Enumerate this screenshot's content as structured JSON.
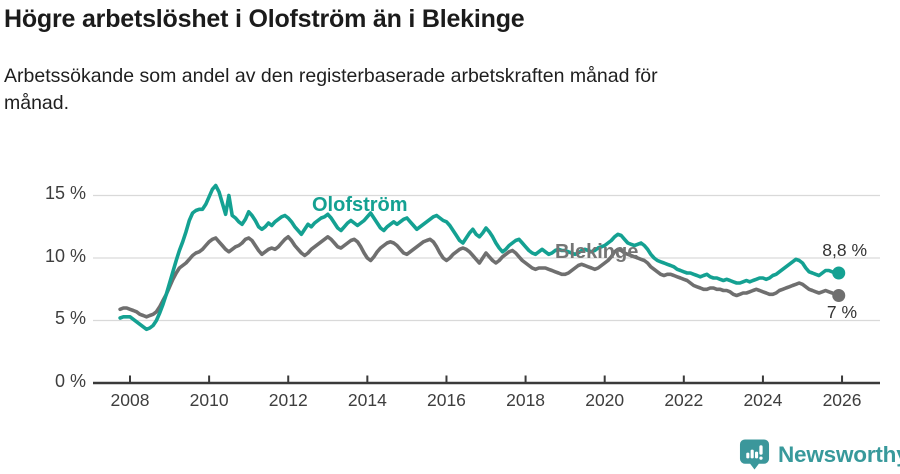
{
  "header": {
    "title": "Högre arbetslöshet i Olofström än i Blekinge",
    "subtitle_line1": "Arbetssökande som andel av den registerbaserade arbetskraften månad för",
    "subtitle_line2": "månad."
  },
  "footer": {
    "brand": "Newsworthy",
    "brand_color": "#38999b"
  },
  "colors": {
    "olofstrom": "#14a192",
    "blekinge": "#6f6f6f",
    "gridline": "#d9d9d9",
    "axis": "#3a3a3a",
    "tick_text": "#3e3e3e",
    "value_text": "#333333"
  },
  "chart_data": {
    "type": "line",
    "title": "Högre arbetslöshet i Olofström än i Blekinge",
    "subtitle": "Arbetssökande som andel av den registerbaserade arbetskraften månad för månad.",
    "x_start": {
      "year": 2007,
      "month": 10
    },
    "x_end": {
      "year": 2025,
      "month": 12
    },
    "x_unit": "month",
    "xticks": [
      2008,
      2010,
      2012,
      2014,
      2016,
      2018,
      2020,
      2022,
      2024,
      2026
    ],
    "ytick_values": [
      0,
      5,
      10,
      15
    ],
    "ytick_labels": [
      "0 %",
      "5 %",
      "10 %",
      "15 %"
    ],
    "ylim": [
      0,
      16.5
    ],
    "grid": "horizontal",
    "legend_position": "inline-labels",
    "series": [
      {
        "name": "Olofström",
        "color": "#14a192",
        "end_label": "8,8 %",
        "end_value": 8.8,
        "values": [
          5.2,
          5.3,
          5.3,
          5.3,
          5.1,
          4.9,
          4.7,
          4.5,
          4.3,
          4.4,
          4.6,
          5.0,
          5.6,
          6.3,
          7.1,
          8.0,
          8.9,
          9.8,
          10.6,
          11.3,
          12.1,
          13.0,
          13.6,
          13.8,
          13.9,
          13.9,
          14.3,
          14.9,
          15.5,
          15.8,
          15.3,
          14.4,
          13.5,
          15.0,
          13.4,
          13.2,
          12.9,
          12.7,
          13.1,
          13.7,
          13.4,
          13.0,
          12.5,
          12.3,
          12.5,
          12.8,
          12.6,
          12.9,
          13.1,
          13.3,
          13.4,
          13.2,
          12.9,
          12.5,
          12.2,
          11.9,
          12.3,
          12.7,
          12.5,
          12.8,
          13.0,
          13.2,
          13.3,
          13.5,
          13.2,
          12.8,
          12.4,
          12.2,
          12.5,
          12.8,
          13.0,
          12.8,
          12.6,
          12.8,
          13.0,
          13.3,
          13.6,
          13.2,
          12.8,
          12.4,
          12.2,
          12.5,
          12.7,
          12.9,
          12.7,
          12.9,
          13.1,
          13.2,
          12.9,
          12.6,
          12.3,
          12.5,
          12.7,
          12.9,
          13.1,
          13.3,
          13.4,
          13.2,
          13.0,
          12.9,
          12.6,
          12.2,
          11.8,
          11.4,
          11.2,
          11.6,
          12.0,
          12.3,
          11.9,
          11.7,
          12.0,
          12.4,
          12.1,
          11.7,
          11.2,
          10.8,
          10.5,
          10.7,
          11.0,
          11.2,
          11.4,
          11.5,
          11.2,
          10.9,
          10.6,
          10.4,
          10.3,
          10.5,
          10.7,
          10.5,
          10.3,
          10.4,
          10.6,
          10.7,
          10.6,
          10.6,
          10.5,
          10.4,
          10.3,
          10.4,
          10.6,
          10.7,
          10.6,
          10.5,
          10.6,
          10.8,
          10.9,
          11.0,
          11.2,
          11.4,
          11.7,
          11.9,
          11.8,
          11.5,
          11.2,
          11.1,
          11.0,
          11.1,
          11.2,
          11.0,
          10.7,
          10.3,
          10.0,
          9.8,
          9.7,
          9.6,
          9.5,
          9.4,
          9.3,
          9.1,
          9.0,
          8.9,
          8.8,
          8.8,
          8.7,
          8.6,
          8.5,
          8.6,
          8.7,
          8.5,
          8.4,
          8.4,
          8.3,
          8.2,
          8.3,
          8.2,
          8.1,
          8.0,
          8.0,
          8.1,
          8.2,
          8.1,
          8.2,
          8.3,
          8.4,
          8.4,
          8.3,
          8.4,
          8.6,
          8.7,
          8.9,
          9.1,
          9.3,
          9.5,
          9.7,
          9.9,
          9.8,
          9.6,
          9.2,
          8.9,
          8.8,
          8.7,
          8.6,
          8.8,
          9.0,
          9.0,
          8.9,
          8.8,
          8.8
        ]
      },
      {
        "name": "Blekinge",
        "color": "#6f6f6f",
        "label_color": "#757575",
        "end_label": "7 %",
        "end_value": 7.0,
        "values": [
          5.9,
          6.0,
          6.0,
          5.9,
          5.8,
          5.7,
          5.5,
          5.4,
          5.3,
          5.4,
          5.5,
          5.7,
          6.1,
          6.6,
          7.1,
          7.7,
          8.3,
          8.8,
          9.2,
          9.4,
          9.6,
          9.9,
          10.2,
          10.4,
          10.5,
          10.7,
          11.0,
          11.3,
          11.5,
          11.6,
          11.3,
          11.0,
          10.7,
          10.5,
          10.7,
          10.9,
          11.0,
          11.2,
          11.5,
          11.6,
          11.4,
          11.0,
          10.6,
          10.3,
          10.5,
          10.7,
          10.8,
          10.7,
          10.9,
          11.2,
          11.5,
          11.7,
          11.4,
          11.0,
          10.7,
          10.4,
          10.2,
          10.4,
          10.7,
          10.9,
          11.1,
          11.3,
          11.5,
          11.7,
          11.5,
          11.2,
          10.9,
          10.8,
          11.0,
          11.2,
          11.4,
          11.5,
          11.3,
          10.9,
          10.4,
          10.0,
          9.8,
          10.1,
          10.5,
          10.8,
          11.0,
          11.2,
          11.3,
          11.2,
          11.0,
          10.7,
          10.4,
          10.3,
          10.5,
          10.7,
          10.9,
          11.1,
          11.3,
          11.4,
          11.5,
          11.3,
          10.9,
          10.4,
          10.0,
          9.8,
          10.0,
          10.3,
          10.5,
          10.7,
          10.8,
          10.7,
          10.5,
          10.2,
          9.9,
          9.6,
          10.0,
          10.4,
          10.1,
          9.8,
          9.6,
          9.8,
          10.1,
          10.3,
          10.5,
          10.6,
          10.4,
          10.1,
          9.8,
          9.6,
          9.4,
          9.2,
          9.1,
          9.2,
          9.2,
          9.2,
          9.1,
          9.0,
          8.9,
          8.8,
          8.7,
          8.7,
          8.8,
          9.0,
          9.2,
          9.4,
          9.5,
          9.4,
          9.3,
          9.2,
          9.1,
          9.2,
          9.4,
          9.6,
          9.8,
          10.1,
          10.5,
          10.7,
          10.6,
          10.4,
          10.3,
          10.2,
          10.1,
          10.0,
          9.9,
          9.8,
          9.6,
          9.3,
          9.1,
          8.9,
          8.7,
          8.6,
          8.7,
          8.7,
          8.6,
          8.5,
          8.4,
          8.3,
          8.2,
          8.0,
          7.8,
          7.7,
          7.6,
          7.5,
          7.5,
          7.6,
          7.6,
          7.5,
          7.5,
          7.4,
          7.4,
          7.3,
          7.1,
          7.0,
          7.1,
          7.2,
          7.2,
          7.3,
          7.4,
          7.5,
          7.4,
          7.3,
          7.2,
          7.1,
          7.1,
          7.2,
          7.4,
          7.5,
          7.6,
          7.7,
          7.8,
          7.9,
          8.0,
          7.9,
          7.7,
          7.5,
          7.4,
          7.3,
          7.2,
          7.3,
          7.4,
          7.3,
          7.2,
          7.1,
          7.0
        ]
      }
    ]
  }
}
